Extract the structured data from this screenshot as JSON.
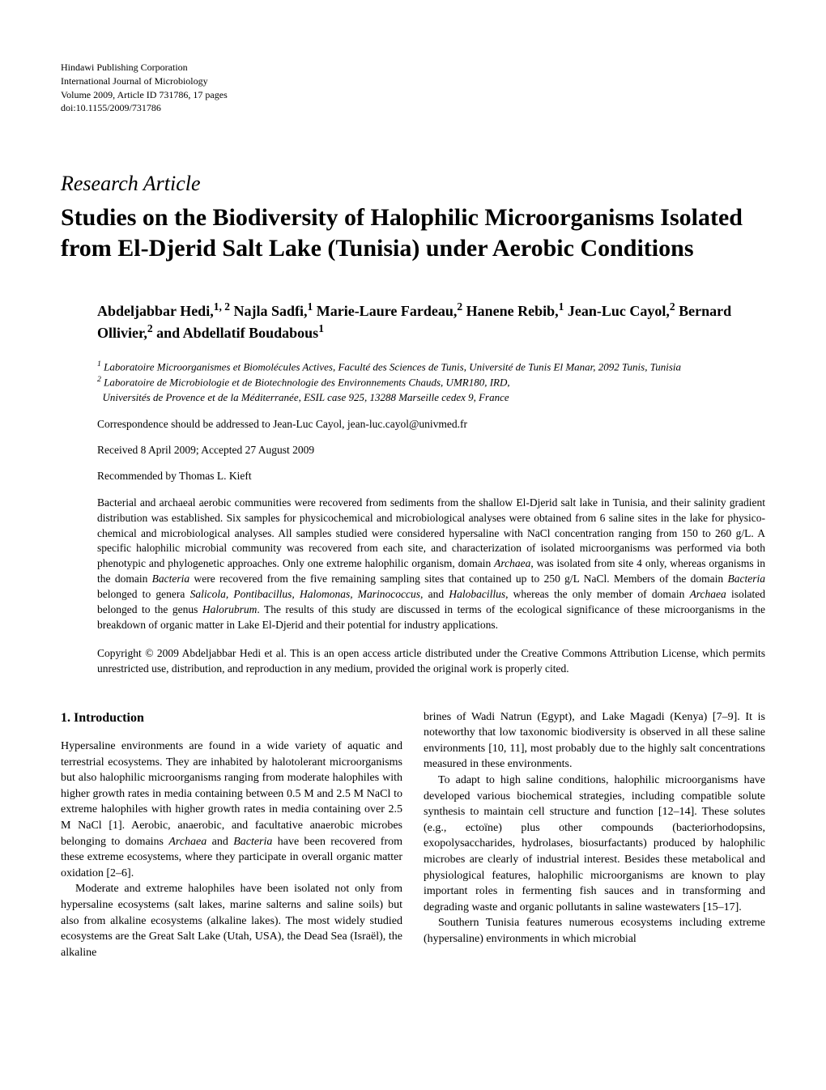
{
  "pubInfo": {
    "line1": "Hindawi Publishing Corporation",
    "line2": "International Journal of Microbiology",
    "line3": "Volume 2009, Article ID 731786, 17 pages",
    "line4": "doi:10.1155/2009/731786"
  },
  "articleType": "Research Article",
  "title": "Studies on the Biodiversity of Halophilic Microorganisms Isolated from El-Djerid Salt Lake (Tunisia) under Aerobic Conditions",
  "authors": "Abdeljabbar Hedi,<sup>1, 2</sup> Najla Sadfi,<sup>1</sup> Marie-Laure Fardeau,<sup>2</sup> Hanene Rebib,<sup>1</sup> Jean-Luc Cayol,<sup>2</sup> Bernard Ollivier,<sup>2</sup> and Abdellatif Boudabous<sup>1</sup>",
  "affiliations": "<sup>1</sup> Laboratoire Microorganismes et Biomolécules Actives, Faculté des Sciences de Tunis, Université de Tunis El Manar, 2092 Tunis, Tunisia<br><sup>2</sup> Laboratoire de Microbiologie et de Biotechnologie des Environnements Chauds, UMR180, IRD,<br>&nbsp;&nbsp;Universités de Provence et de la Méditerranée, ESIL case 925, 13288 Marseille cedex 9, France",
  "correspondence": "Correspondence should be addressed to Jean-Luc Cayol, jean-luc.cayol@univmed.fr",
  "dates": "Received 8 April 2009; Accepted 27 August 2009",
  "recommended": "Recommended by Thomas L. Kieft",
  "abstract": "Bacterial and archaeal aerobic communities were recovered from sediments from the shallow El-Djerid salt lake in Tunisia, and their salinity gradient distribution was established. Six samples for physicochemical and microbiological analyses were obtained from 6 saline sites in the lake for physico-chemical and microbiological analyses. All samples studied were considered hypersaline with NaCl concentration ranging from 150 to 260 g/L. A specific halophilic microbial community was recovered from each site, and characterization of isolated microorganisms was performed via both phenotypic and phylogenetic approaches. Only one extreme halophilic organism, domain <span class=\"italic\">Archaea</span>, was isolated from site 4 only, whereas organisms in the domain <span class=\"italic\">Bacteria</span> were recovered from the five remaining sampling sites that contained up to 250 g/L NaCl. Members of the domain <span class=\"italic\">Bacteria</span> belonged to genera <span class=\"italic\">Salicola, Pontibacillus, Halomonas, Marinococcus</span>, and <span class=\"italic\">Halobacillus</span>, whereas the only member of domain <span class=\"italic\">Archaea</span> isolated belonged to the genus <span class=\"italic\">Halorubrum</span>. The results of this study are discussed in terms of the ecological significance of these microorganisms in the breakdown of organic matter in Lake El-Djerid and their potential for industry applications.",
  "copyright": "Copyright © 2009 Abdeljabbar Hedi et al. This is an open access article distributed under the Creative Commons Attribution License, which permits unrestricted use, distribution, and reproduction in any medium, provided the original work is properly cited.",
  "sectionHeading": "1. Introduction",
  "leftCol": {
    "p1": "Hypersaline environments are found in a wide variety of aquatic and terrestrial ecosystems. They are inhabited by halotolerant microorganisms but also halophilic microorganisms ranging from moderate halophiles with higher growth rates in media containing between 0.5 M and 2.5 M NaCl to extreme halophiles with higher growth rates in media containing over 2.5 M NaCl [1]. Aerobic, anaerobic, and facultative anaerobic microbes belonging to domains <span class=\"italic\">Archaea</span> and <span class=\"italic\">Bacteria</span> have been recovered from these extreme ecosystems, where they participate in overall organic matter oxidation [2–6].",
    "p2": "Moderate and extreme halophiles have been isolated not only from hypersaline ecosystems (salt lakes, marine salterns and saline soils) but also from alkaline ecosystems (alkaline lakes). The most widely studied ecosystems are the Great Salt Lake (Utah, USA), the Dead Sea (Israël), the alkaline"
  },
  "rightCol": {
    "p1": "brines of Wadi Natrun (Egypt), and Lake Magadi (Kenya) [7–9]. It is noteworthy that low taxonomic biodiversity is observed in all these saline environments [10, 11], most probably due to the highly salt concentrations measured in these environments.",
    "p2": "To adapt to high saline conditions, halophilic microorganisms have developed various biochemical strategies, including compatible solute synthesis to maintain cell structure and function [12–14]. These solutes (e.g., ectoïne) plus other compounds (bacteriorhodopsins, exopolysaccharides, hydrolases, biosurfactants) produced by halophilic microbes are clearly of industrial interest. Besides these metabolical and physiological features, halophilic microorganisms are known to play important roles in fermenting fish sauces and in transforming and degrading waste and organic pollutants in saline wastewaters [15–17].",
    "p3": "Southern Tunisia features numerous ecosystems including extreme (hypersaline) environments in which microbial"
  },
  "colors": {
    "background": "#ffffff",
    "text": "#000000"
  },
  "typography": {
    "bodyFont": "Minion Pro, Times New Roman, serif",
    "pubInfoSize": 12,
    "articleTypeSize": 26,
    "titleSize": 30,
    "authorsSize": 18,
    "affiliationsSize": 13,
    "metaSize": 13.5,
    "abstractSize": 13.5,
    "bodySize": 14,
    "sectionHeadingSize": 16
  },
  "layout": {
    "pageWidth": 1020,
    "pageHeight": 1346,
    "padding": 75,
    "leftIndent": 45,
    "columnGap": 26
  }
}
